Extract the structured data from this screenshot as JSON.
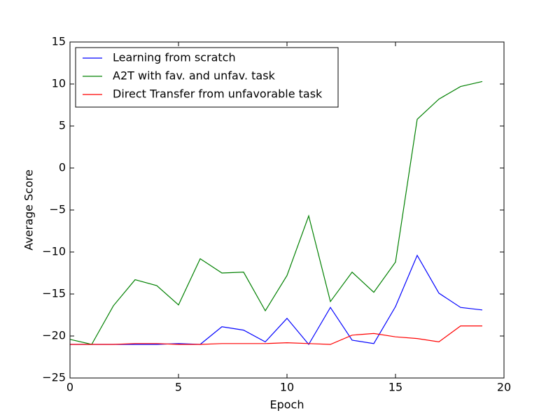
{
  "chart_data": {
    "type": "line",
    "xlabel": "Epoch",
    "ylabel": "Average Score",
    "x": [
      0,
      1,
      2,
      3,
      4,
      5,
      6,
      7,
      8,
      9,
      10,
      11,
      12,
      13,
      14,
      15,
      16,
      17,
      18,
      19
    ],
    "series": [
      {
        "name": "Learning from scratch",
        "color": "#0000ff",
        "values": [
          -21,
          -21,
          -21,
          -21,
          -21,
          -20.9,
          -21,
          -18.9,
          -19.3,
          -20.7,
          -17.9,
          -21,
          -16.6,
          -20.5,
          -20.9,
          -16.5,
          -10.4,
          -14.9,
          -16.6,
          -16.9
        ]
      },
      {
        "name": "A2T with fav. and unfav. task",
        "color": "#008000",
        "values": [
          -20.4,
          -21,
          -16.4,
          -13.3,
          -14,
          -16.3,
          -10.8,
          -12.5,
          -12.4,
          -17,
          -12.8,
          -5.7,
          -15.9,
          -12.4,
          -14.8,
          -11.2,
          5.8,
          8.2,
          9.7,
          10.3
        ]
      },
      {
        "name": "Direct Transfer from unfavorable task",
        "color": "#ff0000",
        "values": [
          -21,
          -21,
          -21,
          -20.9,
          -20.9,
          -21,
          -21,
          -20.9,
          -20.9,
          -20.9,
          -20.8,
          -20.9,
          -21,
          -19.9,
          -19.7,
          -20.1,
          -20.3,
          -20.7,
          -18.8,
          -18.8
        ]
      }
    ],
    "xlim": [
      0,
      20
    ],
    "xticks": [
      0,
      5,
      10,
      15,
      20
    ],
    "ylim": [
      -25,
      15
    ],
    "yticks": [
      {
        "value": -25,
        "label": "−25"
      },
      {
        "value": -20,
        "label": "−20"
      },
      {
        "value": -15,
        "label": "−15"
      },
      {
        "value": -10,
        "label": "−10"
      },
      {
        "value": -5,
        "label": "−5"
      },
      0,
      5,
      10,
      15
    ],
    "legend": "upper left",
    "grid": false
  }
}
